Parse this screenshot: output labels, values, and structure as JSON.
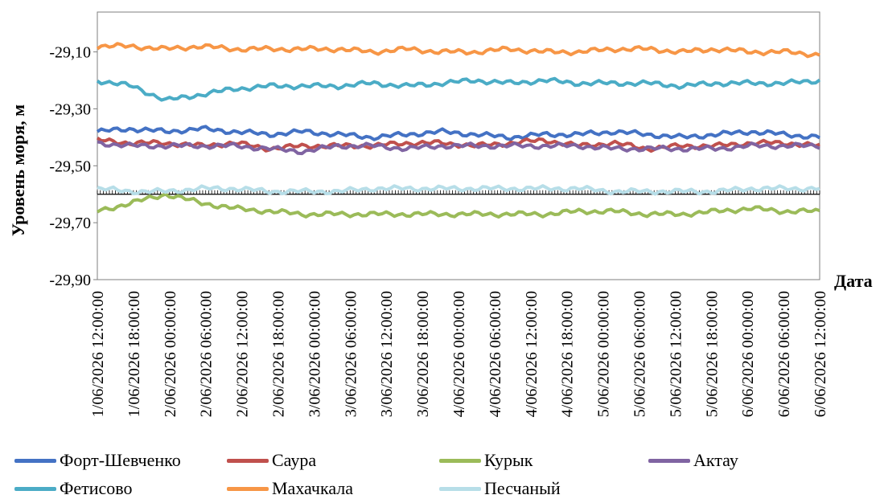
{
  "chart_data": {
    "type": "line",
    "ylabel": "Уровень моря, м",
    "xlabel": "Дата",
    "ylim": [
      -29.9,
      -28.96
    ],
    "y_ticks": [
      "-29,10",
      "-29,30",
      "-29,50",
      "-29,70",
      "-29,90"
    ],
    "y_tick_values": [
      -29.1,
      -29.3,
      -29.5,
      -29.7,
      -29.9
    ],
    "x_tick_labels": [
      "1/06/2026 12:00:00",
      "1/06/2026 18:00:00",
      "2/06/2026 00:00:00",
      "2/06/2026 06:00:00",
      "2/06/2026 12:00:00",
      "2/06/2026 18:00:00",
      "3/06/2026 00:00:00",
      "3/06/2026 06:00:00",
      "3/06/2026 12:00:00",
      "3/06/2026 18:00:00",
      "4/06/2026 00:00:00",
      "4/06/2026 06:00:00",
      "4/06/2026 12:00:00",
      "4/06/2026 18:00:00",
      "5/06/2026 00:00:00",
      "5/06/2026 06:00:00",
      "5/06/2026 12:00:00",
      "5/06/2026 18:00:00",
      "6/06/2026 00:00:00",
      "6/06/2026 06:00:00",
      "6/06/2026 12:00:00"
    ],
    "x_start": "1/06/2026 12:00:00",
    "x_end": "6/06/2026 12:00:00",
    "reference_line": -29.6,
    "series": [
      {
        "name": "Форт-Шевченко",
        "color": "#4472C4",
        "values": [
          -29.38,
          -29.37,
          -29.38,
          -29.37,
          -29.38,
          -29.39,
          -29.38,
          -29.39,
          -29.4,
          -29.39,
          -29.38,
          -29.39,
          -29.4,
          -29.39,
          -29.39,
          -29.38,
          -29.39,
          -29.4,
          -29.39,
          -29.38,
          -29.39,
          -29.4
        ]
      },
      {
        "name": "Саура",
        "color": "#C0504D",
        "values": [
          -29.41,
          -29.42,
          -29.42,
          -29.43,
          -29.42,
          -29.44,
          -29.43,
          -29.43,
          -29.43,
          -29.42,
          -29.42,
          -29.43,
          -29.42,
          -29.41,
          -29.43,
          -29.42,
          -29.44,
          -29.43,
          -29.43,
          -29.42,
          -29.42,
          -29.43
        ]
      },
      {
        "name": "Курык",
        "color": "#9BBB59",
        "values": [
          -29.66,
          -29.63,
          -29.6,
          -29.63,
          -29.65,
          -29.66,
          -29.67,
          -29.67,
          -29.67,
          -29.67,
          -29.67,
          -29.67,
          -29.67,
          -29.67,
          -29.66,
          -29.66,
          -29.67,
          -29.67,
          -29.66,
          -29.65,
          -29.66,
          -29.66
        ]
      },
      {
        "name": "Актау",
        "color": "#8064A2",
        "values": [
          -29.42,
          -29.43,
          -29.43,
          -29.43,
          -29.43,
          -29.44,
          -29.45,
          -29.43,
          -29.43,
          -29.44,
          -29.43,
          -29.43,
          -29.43,
          -29.43,
          -29.43,
          -29.44,
          -29.44,
          -29.44,
          -29.44,
          -29.43,
          -29.43,
          -29.43
        ]
      },
      {
        "name": "Фетисово",
        "color": "#4BACC6",
        "values": [
          -29.2,
          -29.22,
          -29.27,
          -29.25,
          -29.23,
          -29.22,
          -29.22,
          -29.22,
          -29.21,
          -29.22,
          -29.21,
          -29.2,
          -29.21,
          -29.2,
          -29.21,
          -29.21,
          -29.21,
          -29.22,
          -29.21,
          -29.21,
          -29.21,
          -29.2
        ]
      },
      {
        "name": "Махачкала",
        "color": "#F79646",
        "values": [
          -29.08,
          -29.08,
          -29.09,
          -29.08,
          -29.09,
          -29.09,
          -29.09,
          -29.09,
          -29.1,
          -29.09,
          -29.1,
          -29.1,
          -29.09,
          -29.1,
          -29.1,
          -29.09,
          -29.09,
          -29.1,
          -29.09,
          -29.1,
          -29.1,
          -29.11
        ]
      },
      {
        "name": "Песчаный",
        "color": "#B7DEE8",
        "values": [
          -29.58,
          -29.59,
          -29.59,
          -29.58,
          -29.58,
          -29.59,
          -29.59,
          -29.59,
          -29.58,
          -29.58,
          -29.58,
          -29.58,
          -29.58,
          -29.58,
          -29.58,
          -29.59,
          -29.59,
          -29.59,
          -29.59,
          -29.58,
          -29.58,
          -29.58
        ]
      }
    ],
    "legend_placement": "bottom"
  }
}
